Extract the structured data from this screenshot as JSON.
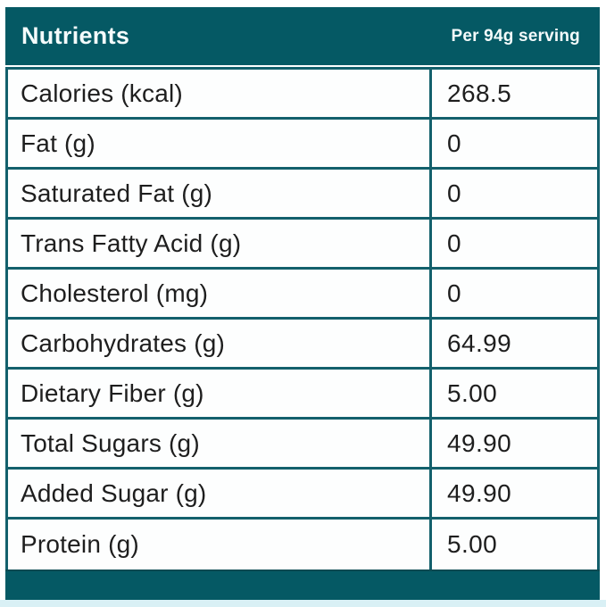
{
  "header": {
    "title": "Nutrients",
    "serving_label": "Per 94g serving"
  },
  "table": {
    "rows": [
      {
        "label": "Calories (kcal)",
        "value": "268.5"
      },
      {
        "label": "Fat (g)",
        "value": "0"
      },
      {
        "label": "Saturated Fat (g)",
        "value": "0"
      },
      {
        "label": "Trans Fatty Acid (g)",
        "value": "0"
      },
      {
        "label": "Cholesterol (mg)",
        "value": "0"
      },
      {
        "label": "Carbohydrates (g)",
        "value": "64.99"
      },
      {
        "label": "Dietary Fiber (g)",
        "value": "5.00"
      },
      {
        "label": "Total Sugars (g)",
        "value": "49.90"
      },
      {
        "label": "Added Sugar (g)",
        "value": "49.90"
      },
      {
        "label": "Protein (g)",
        "value": "5.00"
      }
    ]
  },
  "colors": {
    "teal": "#055964",
    "border_teal": "#13606c",
    "row_text": "#1e1e1e",
    "row_bg": "#fdfefe",
    "header_text": "#f4fbfb",
    "bottom_strip": "#d9f0f5"
  }
}
